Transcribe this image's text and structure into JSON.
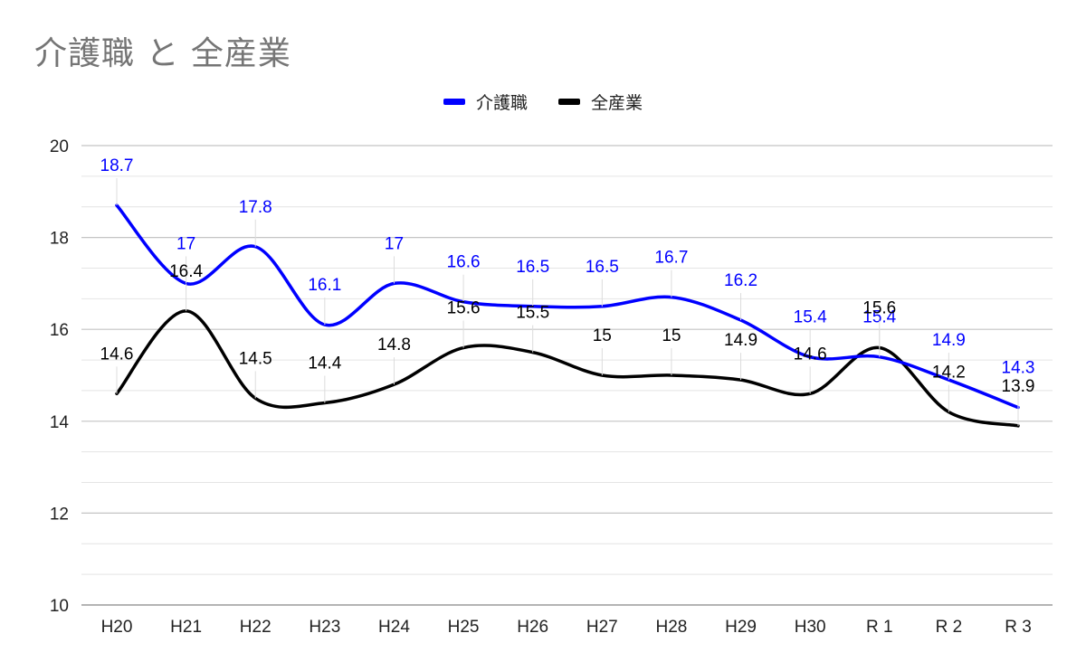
{
  "chart_data": {
    "type": "line",
    "title": "介護職 と 全産業",
    "categories": [
      "H20",
      "H21",
      "H22",
      "H23",
      "H24",
      "H25",
      "H26",
      "H27",
      "H28",
      "H29",
      "H30",
      "R 1",
      "R 2",
      "R 3"
    ],
    "series": [
      {
        "name": "介護職",
        "color": "#0000ff",
        "values": [
          18.7,
          17,
          17.8,
          16.1,
          17,
          16.6,
          16.5,
          16.5,
          16.7,
          16.2,
          15.4,
          15.4,
          14.9,
          14.3
        ]
      },
      {
        "name": "全産業",
        "color": "#000000",
        "values": [
          14.6,
          16.4,
          14.5,
          14.4,
          14.8,
          15.6,
          15.5,
          15,
          15,
          14.9,
          14.6,
          15.6,
          14.2,
          13.9
        ]
      }
    ],
    "ylim": [
      10,
      20
    ],
    "yticks": [
      10,
      12,
      14,
      16,
      18,
      20
    ],
    "grid": true,
    "legend": "top",
    "smooth": true,
    "data_labels": true
  }
}
